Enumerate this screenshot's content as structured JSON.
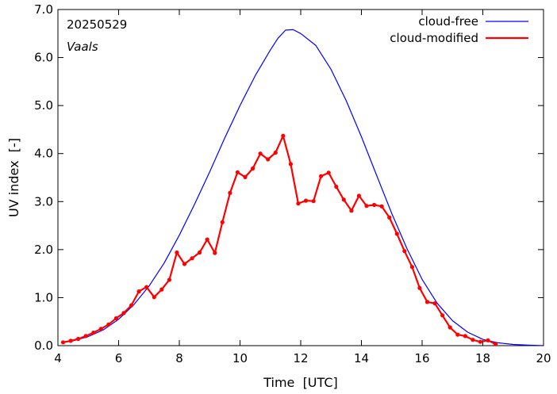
{
  "chart_data": {
    "type": "line",
    "title": "",
    "xlabel": "Time  [UTC]",
    "ylabel": "UV index  [-]",
    "xlim": [
      4,
      20
    ],
    "ylim": [
      0,
      7
    ],
    "x_ticks": [
      4,
      6,
      8,
      10,
      12,
      14,
      16,
      18,
      20
    ],
    "x_tick_labels": [
      "4",
      "6",
      "8",
      "10",
      "12",
      "14",
      "16",
      "18",
      "20"
    ],
    "y_ticks": [
      0,
      1,
      2,
      3,
      4,
      5,
      6,
      7
    ],
    "y_tick_labels": [
      "0.0",
      "1.0",
      "2.0",
      "3.0",
      "4.0",
      "5.0",
      "6.0",
      "7.0"
    ],
    "grid": false,
    "legend_position": "top-right",
    "annotations": [
      "20250529",
      "Vaals"
    ],
    "series": [
      {
        "name": "cloud-free",
        "color": "#0000ff",
        "markers": false,
        "x": [
          4.2,
          4.5,
          5.0,
          5.5,
          6.0,
          6.5,
          7.0,
          7.5,
          8.0,
          8.5,
          9.0,
          9.5,
          10.0,
          10.5,
          11.0,
          11.25,
          11.5,
          11.75,
          12.0,
          12.5,
          13.0,
          13.5,
          14.0,
          14.5,
          15.0,
          15.5,
          16.0,
          16.5,
          17.0,
          17.5,
          18.0,
          18.5,
          19.0,
          19.5,
          20.0
        ],
        "y": [
          0.07,
          0.1,
          0.19,
          0.33,
          0.55,
          0.85,
          1.24,
          1.72,
          2.3,
          2.94,
          3.62,
          4.33,
          5.0,
          5.62,
          6.16,
          6.4,
          6.57,
          6.58,
          6.5,
          6.25,
          5.75,
          5.1,
          4.35,
          3.55,
          2.75,
          2.02,
          1.38,
          0.88,
          0.52,
          0.28,
          0.13,
          0.06,
          0.025,
          0.01,
          0.0
        ]
      },
      {
        "name": "cloud-modified",
        "color": "#ff0000",
        "markers": true,
        "x": [
          4.17,
          4.42,
          4.67,
          4.92,
          5.17,
          5.42,
          5.67,
          5.92,
          6.17,
          6.42,
          6.67,
          6.92,
          7.17,
          7.42,
          7.67,
          7.92,
          8.17,
          8.42,
          8.67,
          8.92,
          9.17,
          9.42,
          9.67,
          9.92,
          10.17,
          10.42,
          10.67,
          10.92,
          11.17,
          11.42,
          11.67,
          11.92,
          12.17,
          12.42,
          12.67,
          12.92,
          13.17,
          13.42,
          13.67,
          13.92,
          14.17,
          14.42,
          14.67,
          14.92,
          15.17,
          15.42,
          15.67,
          15.92,
          16.17,
          16.42,
          16.67,
          16.92,
          17.17,
          17.42,
          17.67,
          17.92,
          18.17,
          18.42
        ],
        "y": [
          0.07,
          0.1,
          0.14,
          0.2,
          0.27,
          0.35,
          0.44,
          0.57,
          0.68,
          0.84,
          1.13,
          1.22,
          1.01,
          1.17,
          1.37,
          1.94,
          1.7,
          1.82,
          1.94,
          2.21,
          1.93,
          2.57,
          3.18,
          3.61,
          3.51,
          3.69,
          4.0,
          3.88,
          4.02,
          4.37,
          3.78,
          2.96,
          3.02,
          3.01,
          3.53,
          3.6,
          3.31,
          3.04,
          2.81,
          3.12,
          2.91,
          2.93,
          2.9,
          2.67,
          2.33,
          1.97,
          1.64,
          1.2,
          0.91,
          0.88,
          0.63,
          0.38,
          0.23,
          0.2,
          0.12,
          0.08,
          0.11,
          0.03
        ]
      }
    ]
  }
}
